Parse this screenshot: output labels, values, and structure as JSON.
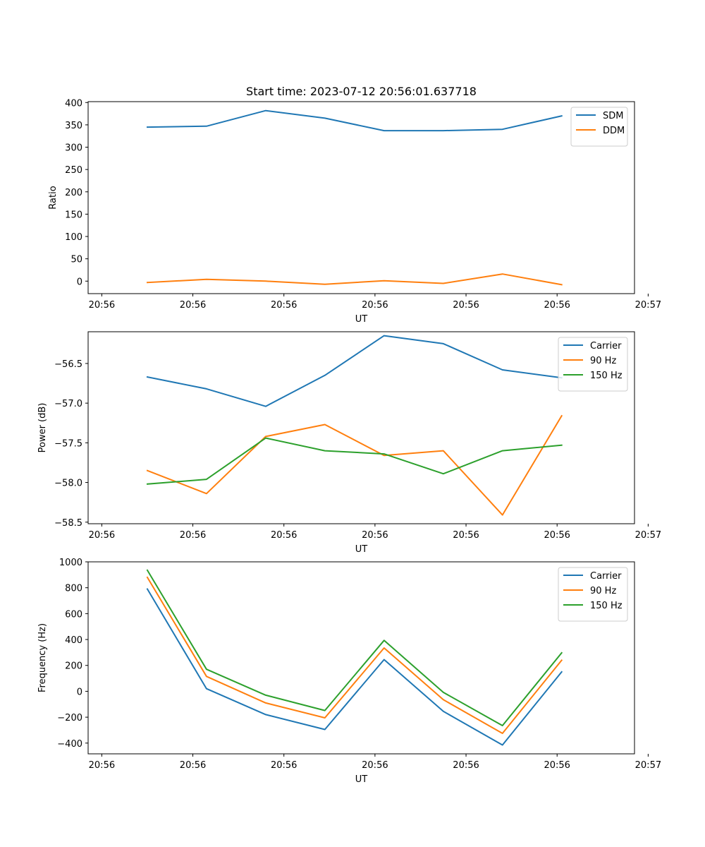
{
  "chart_data": [
    {
      "type": "line",
      "title": "Start time: 2023-07-12 20:56:01.637718",
      "xlabel": "UT",
      "ylabel": "Ratio",
      "xlim": [
        -0.15,
        5.85
      ],
      "ylim": [
        -28,
        402
      ],
      "x_ticks": [
        0,
        1,
        2,
        3,
        4,
        5,
        6
      ],
      "x_tick_labels": [
        "20:56",
        "20:56",
        "20:56",
        "20:56",
        "20:56",
        "20:56",
        "20:57"
      ],
      "y_ticks": [
        0,
        50,
        100,
        150,
        200,
        250,
        300,
        350,
        400
      ],
      "y_tick_labels": [
        "0",
        "50",
        "100",
        "150",
        "200",
        "250",
        "300",
        "350",
        "400"
      ],
      "x": [
        0.5,
        1.15,
        1.8,
        2.45,
        3.1,
        3.75,
        4.4,
        5.05
      ],
      "legend_position": "top-right",
      "series": [
        {
          "name": "SDM",
          "color": "#1f77b4",
          "values": [
            345,
            347,
            382,
            365,
            337,
            337,
            340,
            370
          ]
        },
        {
          "name": "DDM",
          "color": "#ff7f0e",
          "values": [
            -3,
            4,
            0,
            -7,
            1,
            -5,
            16,
            -8
          ]
        }
      ]
    },
    {
      "type": "line",
      "title": "",
      "xlabel": "UT",
      "ylabel": "Power (dB)",
      "xlim": [
        -0.15,
        5.85
      ],
      "ylim": [
        -58.52,
        -56.1
      ],
      "x_ticks": [
        0,
        1,
        2,
        3,
        4,
        5,
        6
      ],
      "x_tick_labels": [
        "20:56",
        "20:56",
        "20:56",
        "20:56",
        "20:56",
        "20:56",
        "20:57"
      ],
      "y_ticks": [
        -58.5,
        -58.0,
        -57.5,
        -57.0,
        -56.5
      ],
      "y_tick_labels": [
        "−58.5",
        "−58.0",
        "−57.5",
        "−57.0",
        "−56.5"
      ],
      "x": [
        0.5,
        1.15,
        1.8,
        2.45,
        3.1,
        3.75,
        4.4,
        5.05
      ],
      "legend_position": "top-right",
      "series": [
        {
          "name": "Carrier",
          "color": "#1f77b4",
          "values": [
            -56.67,
            -56.82,
            -57.04,
            -56.65,
            -56.15,
            -56.25,
            -56.58,
            -56.68
          ]
        },
        {
          "name": "90 Hz",
          "color": "#ff7f0e",
          "values": [
            -57.85,
            -58.14,
            -57.42,
            -57.27,
            -57.66,
            -57.6,
            -58.41,
            -57.16
          ]
        },
        {
          "name": "150 Hz",
          "color": "#2ca02c",
          "values": [
            -58.02,
            -57.96,
            -57.44,
            -57.6,
            -57.64,
            -57.89,
            -57.6,
            -57.53
          ]
        }
      ]
    },
    {
      "type": "line",
      "title": "",
      "xlabel": "UT",
      "ylabel": "Frequency (Hz)",
      "xlim": [
        -0.15,
        5.85
      ],
      "ylim": [
        -483,
        1000
      ],
      "x_ticks": [
        0,
        1,
        2,
        3,
        4,
        5,
        6
      ],
      "x_tick_labels": [
        "20:56",
        "20:56",
        "20:56",
        "20:56",
        "20:56",
        "20:56",
        "20:57"
      ],
      "y_ticks": [
        -400,
        -200,
        0,
        200,
        400,
        600,
        800,
        1000
      ],
      "y_tick_labels": [
        "−400",
        "−200",
        "0",
        "200",
        "400",
        "600",
        "800",
        "1000"
      ],
      "x": [
        0.5,
        1.15,
        1.8,
        2.45,
        3.1,
        3.75,
        4.4,
        5.05
      ],
      "legend_position": "top-right",
      "series": [
        {
          "name": "Carrier",
          "color": "#1f77b4",
          "values": [
            790,
            20,
            -180,
            -295,
            245,
            -155,
            -415,
            150
          ]
        },
        {
          "name": "90 Hz",
          "color": "#ff7f0e",
          "values": [
            880,
            115,
            -90,
            -205,
            335,
            -65,
            -325,
            240
          ]
        },
        {
          "name": "150 Hz",
          "color": "#2ca02c",
          "values": [
            935,
            170,
            -30,
            -148,
            393,
            -8,
            -265,
            297
          ]
        }
      ]
    }
  ]
}
